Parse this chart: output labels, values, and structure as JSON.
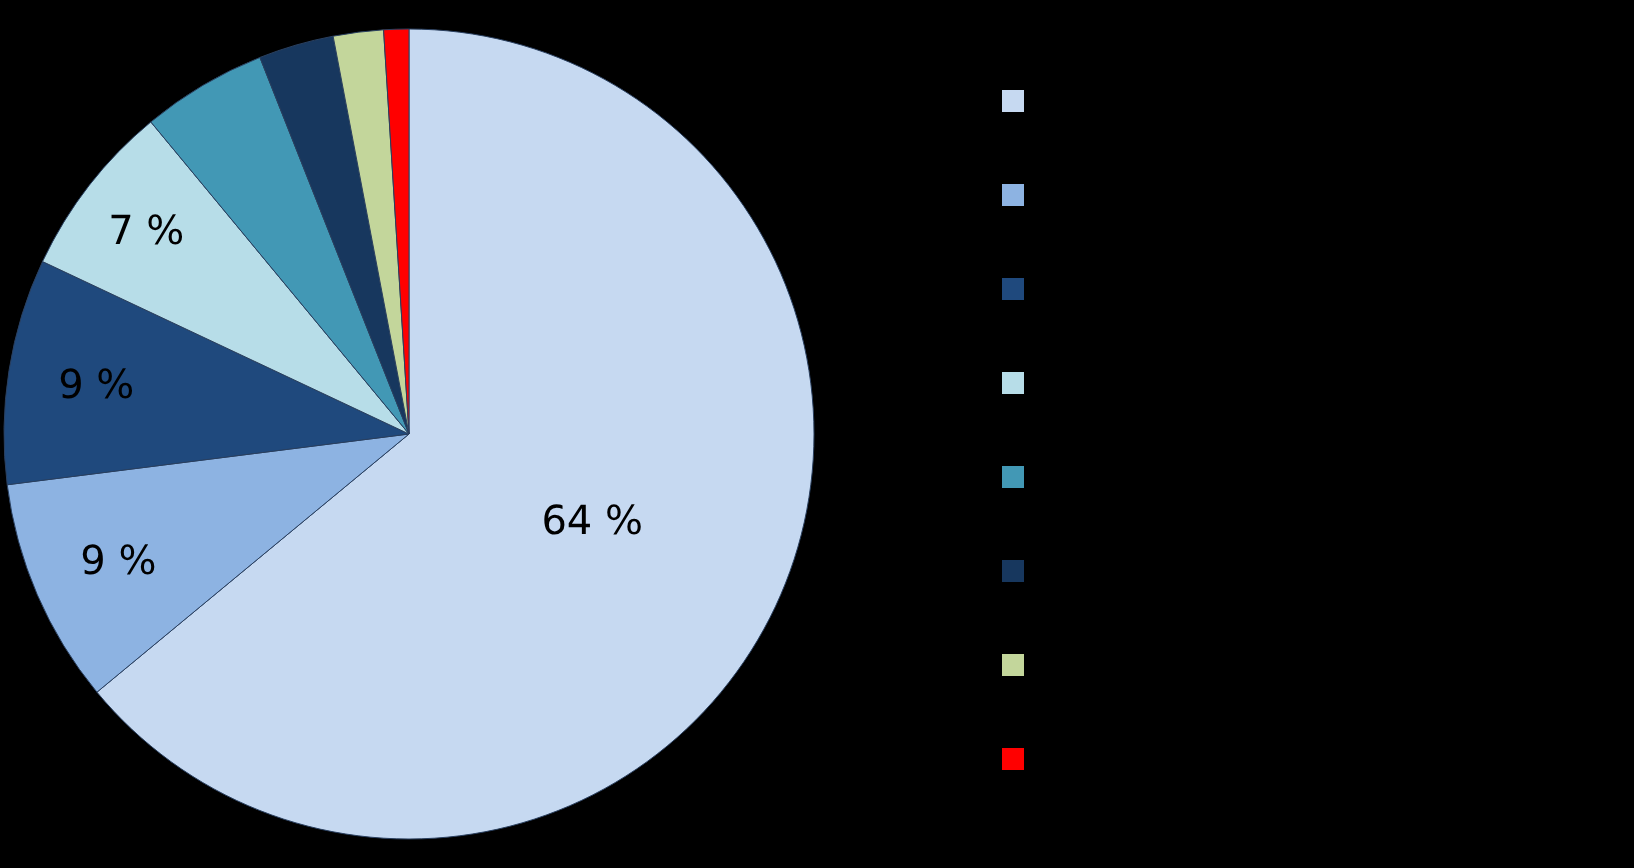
{
  "chart_data": {
    "type": "pie",
    "categories": [
      null,
      null,
      null,
      null,
      null,
      null,
      null,
      null
    ],
    "values": [
      64,
      9,
      9,
      7,
      5,
      3,
      2,
      1
    ],
    "colors": [
      "#c6d9f1",
      "#8db3e2",
      "#1f497d",
      "#b7dde8",
      "#4298b5",
      "#17375e",
      "#c3d69b",
      "#ff0000"
    ],
    "value_labels": [
      "64 %",
      "9 %",
      "9 %",
      "7 %",
      null,
      null,
      null,
      null
    ]
  }
}
